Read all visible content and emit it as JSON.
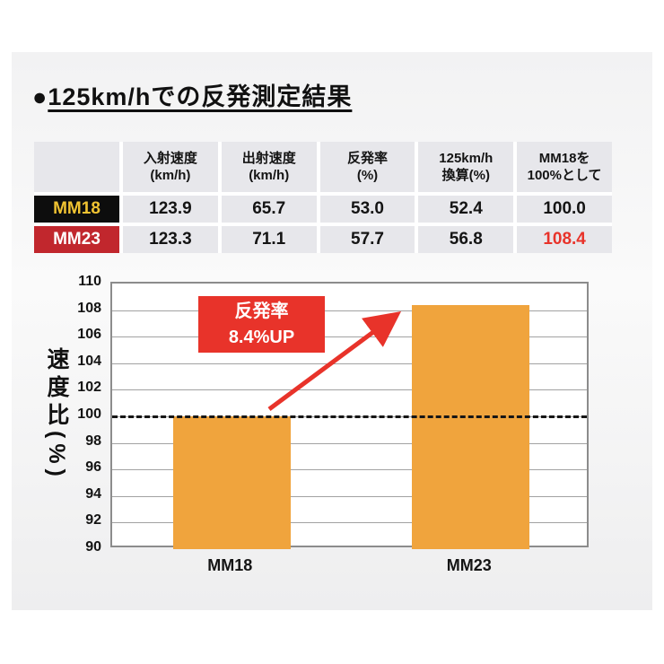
{
  "title": {
    "bullet": "●",
    "text": "125km/hでの反発測定結果"
  },
  "table": {
    "headers": [
      "",
      "入射速度\n(km/h)",
      "出射速度\n(km/h)",
      "反発率\n(%)",
      "125km/h\n換算(%)",
      "MM18を\n100%として"
    ],
    "rows": [
      {
        "label": "MM18",
        "values": [
          "123.9",
          "65.7",
          "53.0",
          "52.4",
          "100.0"
        ]
      },
      {
        "label": "MM23",
        "values": [
          "123.3",
          "71.1",
          "57.7",
          "56.8",
          "108.4"
        ]
      }
    ]
  },
  "chart_data": {
    "type": "bar",
    "categories": [
      "MM18",
      "MM23"
    ],
    "values": [
      100.0,
      108.4
    ],
    "title": "",
    "xlabel": "",
    "ylabel": "速度比(%)",
    "ylim": [
      90,
      110
    ],
    "yticks": [
      110,
      108,
      106,
      104,
      102,
      100,
      98,
      96,
      94,
      92,
      90
    ],
    "reference_line": 100,
    "annotation": "反発率\n8.4%UP",
    "grid": true,
    "legend": false,
    "bar_color": "#f0a43d"
  },
  "colors": {
    "bar": "#f0a43d",
    "accent_red": "#e8332a",
    "mm18_label_bg": "#0d0d0d",
    "mm18_label_text": "#f0c332",
    "mm23_label_bg": "#c1272d",
    "mm23_label_text": "#ffffff",
    "cell_bg": "#e7e7eb",
    "highlight_value": "#e8332a"
  }
}
